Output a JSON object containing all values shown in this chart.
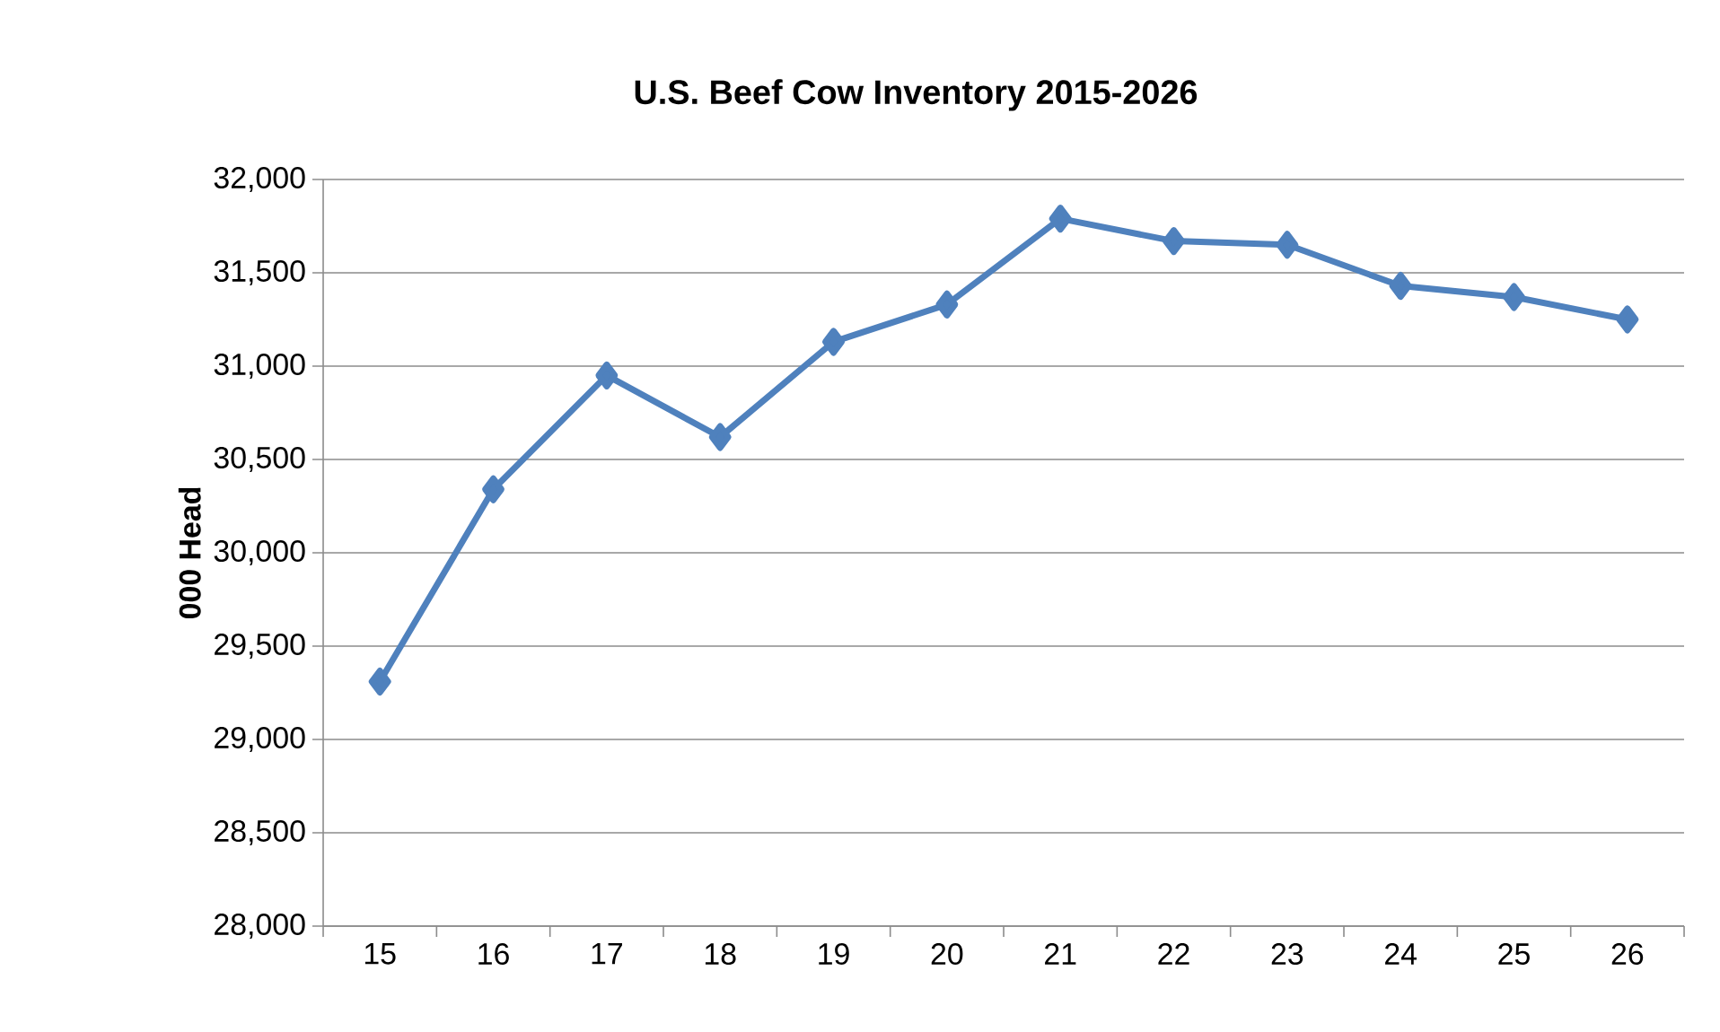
{
  "chart_data": {
    "type": "line",
    "title": "U.S. Beef Cow Inventory 2015-2026",
    "ylabel": "000 Head",
    "categories": [
      "15",
      "16",
      "17",
      "18",
      "19",
      "20",
      "21",
      "22",
      "23",
      "24",
      "25",
      "26"
    ],
    "series": [
      {
        "color": "#4f81bd",
        "values": [
          29310,
          30340,
          30950,
          30620,
          31130,
          31330,
          31790,
          31670,
          31650,
          31430,
          31370,
          31250
        ]
      }
    ],
    "ylim": [
      28000,
      32000
    ],
    "yticks": [
      {
        "value": 28000,
        "label": "28,000"
      },
      {
        "value": 28500,
        "label": "28,500"
      },
      {
        "value": 29000,
        "label": "29,000"
      },
      {
        "value": 29500,
        "label": "29,500"
      },
      {
        "value": 30000,
        "label": "30,000"
      },
      {
        "value": 30500,
        "label": "30,500"
      },
      {
        "value": 31000,
        "label": "31,000"
      },
      {
        "value": 31500,
        "label": "31,500"
      },
      {
        "value": 32000,
        "label": "32,000"
      }
    ],
    "grid": "y",
    "marker": "diamond",
    "line_style": "solid"
  }
}
